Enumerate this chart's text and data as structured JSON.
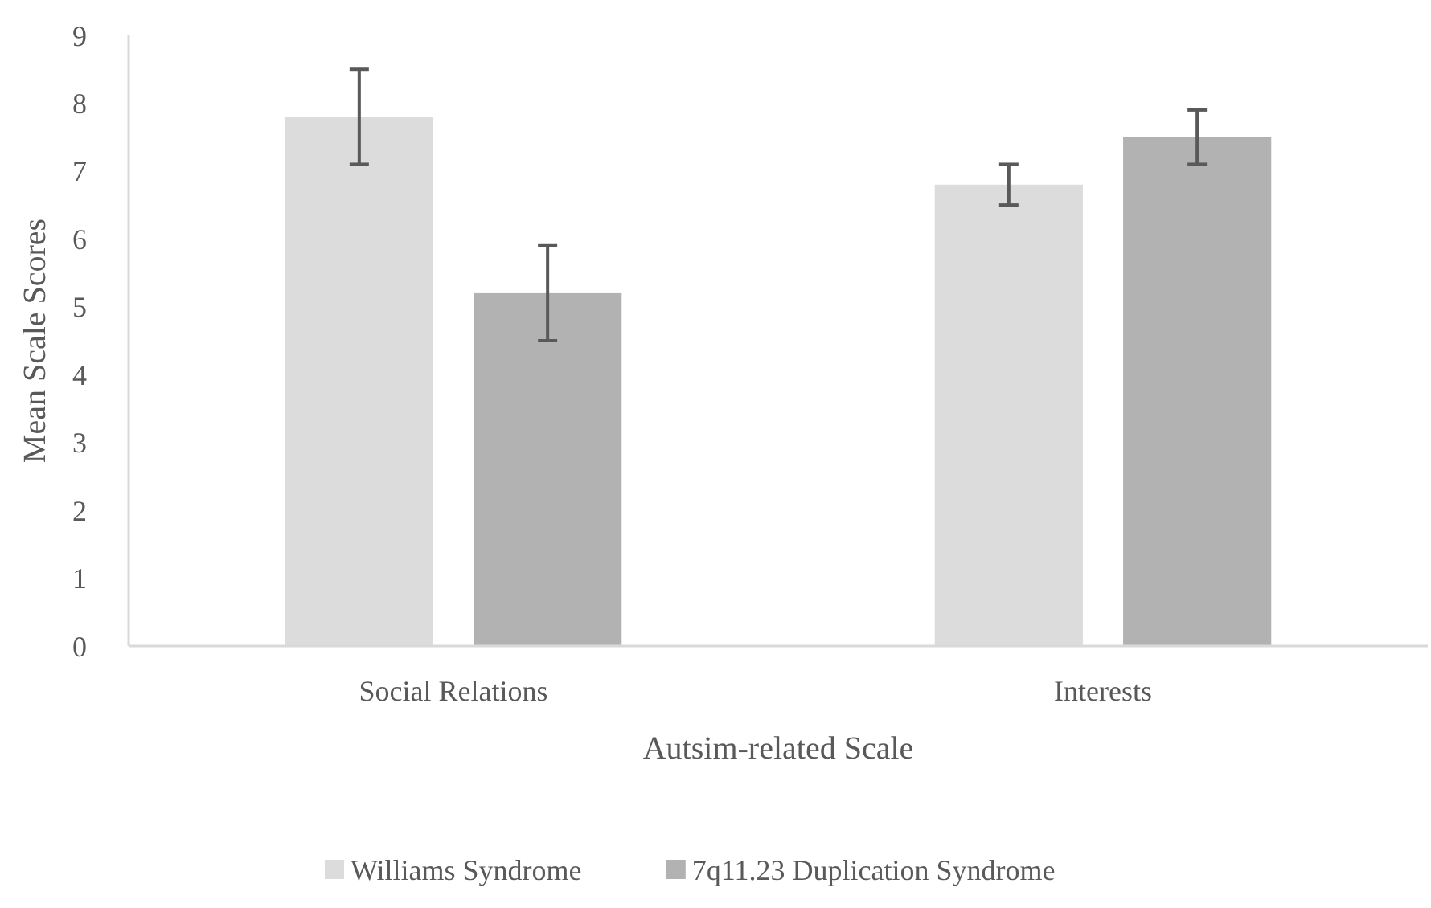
{
  "chart_data": {
    "type": "bar",
    "categories": [
      "Social Relations",
      "Interests"
    ],
    "series": [
      {
        "name": "Williams Syndrome",
        "color": "#dcdcdc",
        "values": [
          7.8,
          6.8
        ],
        "errors": [
          0.7,
          0.3
        ]
      },
      {
        "name": "7q11.23 Duplication Syndrome",
        "color": "#b2b2b2",
        "values": [
          5.2,
          7.5
        ],
        "errors": [
          0.7,
          0.4
        ]
      }
    ],
    "xlabel": "Autsim-related Scale",
    "ylabel": "Mean Scale Scores",
    "ylim": [
      0,
      9
    ],
    "yticks": [
      0,
      1,
      2,
      3,
      4,
      5,
      6,
      7,
      8,
      9
    ],
    "grid": false,
    "legend": "bottom"
  }
}
